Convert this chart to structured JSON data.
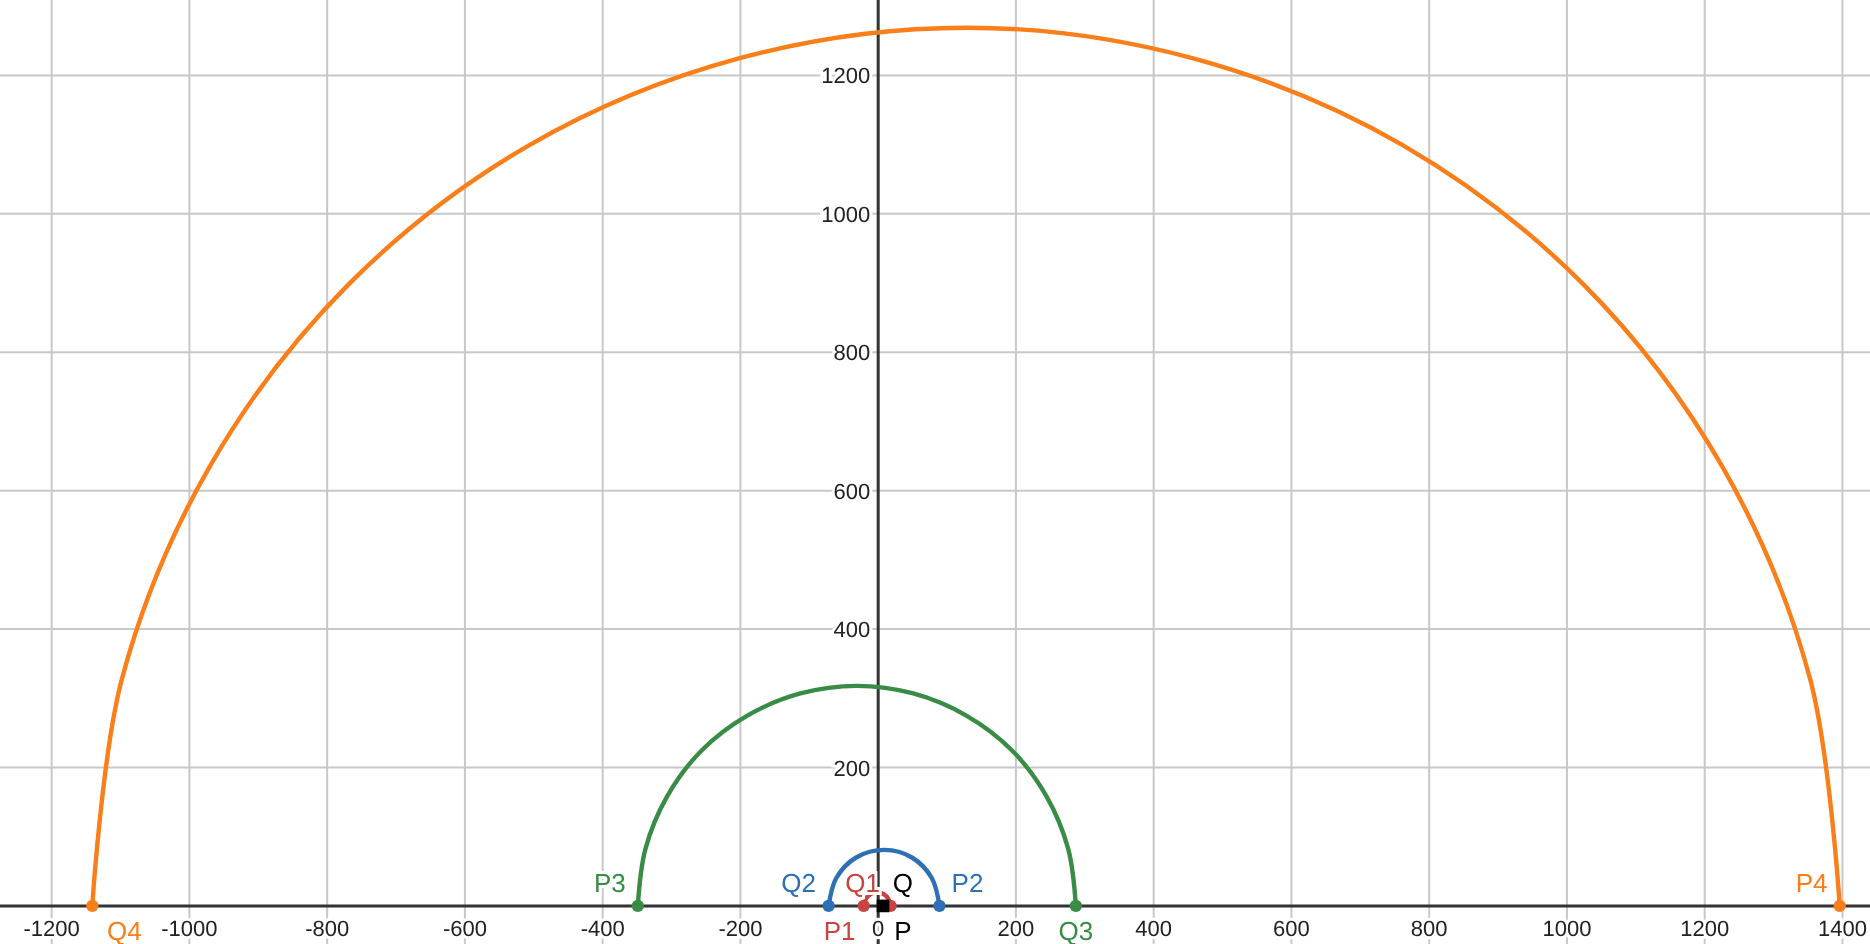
{
  "chart_data": {
    "type": "line",
    "xlim": [
      -1275,
      1440
    ],
    "ylim": [
      -55,
      1309
    ],
    "xticks": [
      -1200,
      -1000,
      -800,
      -600,
      -400,
      -200,
      0,
      200,
      400,
      600,
      800,
      1000,
      1200,
      1400
    ],
    "yticks": [
      200,
      400,
      600,
      800,
      1000,
      1200
    ],
    "grid": true,
    "series": [
      {
        "color": "#c74440",
        "x": [
          18,
          15,
          8,
          -2,
          -11,
          -18,
          -21
        ],
        "values": [
          0,
          10,
          17,
          20,
          17,
          10,
          0
        ]
      },
      {
        "color": "#2d70b3",
        "x": [
          89,
          78,
          49,
          9,
          -32,
          -61,
          -72
        ],
        "values": [
          0,
          40,
          70,
          81,
          70,
          40,
          0
        ]
      },
      {
        "color": "#388c46",
        "x": [
          287,
          276,
          244,
          194,
          128,
          51,
          -31,
          -113,
          -190,
          -256,
          -306,
          -338,
          -349
        ],
        "values": [
          0,
          82,
          159,
          225,
          275,
          307,
          318,
          307,
          275,
          225,
          159,
          82,
          0
        ]
      },
      {
        "color": "#fa7e19",
        "x": [
          1396,
          1353,
          1226,
          1025,
          762,
          456,
          128,
          -201,
          -507,
          -770,
          -971,
          -1098,
          -1141
        ],
        "values": [
          0,
          328,
          634,
          897,
          1099,
          1225,
          1269,
          1225,
          1099,
          897,
          634,
          328,
          0
        ]
      },
      {
        "type": "scatter",
        "marker": "circle",
        "color": "#c74440",
        "x": [
          -21,
          18
        ],
        "values": [
          0,
          0
        ]
      },
      {
        "type": "scatter",
        "marker": "circle",
        "color": "#2d70b3",
        "x": [
          -72,
          89
        ],
        "values": [
          0,
          0
        ]
      },
      {
        "type": "scatter",
        "marker": "circle",
        "color": "#388c46",
        "x": [
          -349,
          287
        ],
        "values": [
          0,
          0
        ]
      },
      {
        "type": "scatter",
        "marker": "circle",
        "color": "#fa7e19",
        "x": [
          -1141,
          1396
        ],
        "values": [
          0,
          0
        ]
      },
      {
        "type": "scatter",
        "marker": "square",
        "color": "#000000",
        "x": [
          7
        ],
        "values": [
          0
        ]
      }
    ],
    "annotations": [
      {
        "text": "P1",
        "x": -21,
        "y": 0
      },
      {
        "text": "Q1",
        "x": 18,
        "y": 0
      },
      {
        "text": "Q",
        "x": 7,
        "y": 0
      },
      {
        "text": "P",
        "x": 7,
        "y": 0
      },
      {
        "text": "Q2",
        "x": -72,
        "y": 0
      },
      {
        "text": "P2",
        "x": 89,
        "y": 0
      },
      {
        "text": "P3",
        "x": -349,
        "y": 0
      },
      {
        "text": "Q3",
        "x": 287,
        "y": 0
      },
      {
        "text": "Q4",
        "x": -1141,
        "y": 0
      },
      {
        "text": "P4",
        "x": 1396,
        "y": 0
      }
    ]
  }
}
